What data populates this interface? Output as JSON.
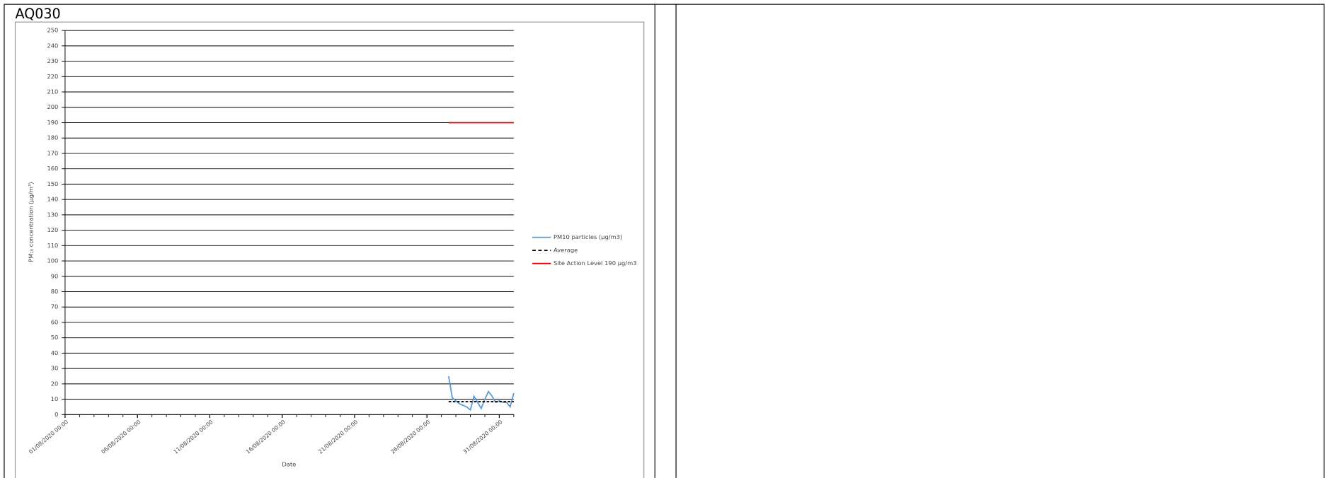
{
  "header": {
    "label": "AQ030"
  },
  "chart_data": {
    "type": "line",
    "y_label": "PM₁₀ concentration (µg/m³)",
    "x_label": "Date",
    "x": [
      "27/08/2020 12:00",
      "27/08/2020 18:00",
      "28/08/2020 00:00",
      "28/08/2020 06:00",
      "28/08/2020 12:00",
      "28/08/2020 18:00",
      "29/08/2020 00:00",
      "29/08/2020 06:00",
      "29/08/2020 12:00",
      "29/08/2020 18:00",
      "30/08/2020 00:00",
      "30/08/2020 06:00",
      "30/08/2020 12:00",
      "30/08/2020 18:00",
      "31/08/2020 00:00",
      "31/08/2020 06:00",
      "31/08/2020 12:00",
      "31/08/2020 18:00",
      "01/09/2020 00:00"
    ],
    "series": [
      {
        "name": "PM10 particles (µg/m3)",
        "color": "#5b9bd5",
        "dash": false,
        "values": [
          25,
          11,
          9,
          7,
          6,
          5,
          3,
          12,
          8,
          4,
          10,
          15,
          12,
          8,
          9,
          8,
          8,
          5,
          14
        ]
      },
      {
        "name": "Average",
        "color": "#000000",
        "dash": true,
        "values": [
          8.4,
          8.4,
          8.4,
          8.4,
          8.4,
          8.4,
          8.4,
          8.4,
          8.4,
          8.4,
          8.4,
          8.4,
          8.4,
          8.4,
          8.4,
          8.4,
          8.4,
          8.4,
          8.4
        ]
      },
      {
        "name": "Site Action Level 190 µg/m3",
        "color": "#e00000",
        "dash": false,
        "values": [
          190,
          190,
          190,
          190,
          190,
          190,
          190,
          190,
          190,
          190,
          190,
          190,
          190,
          190,
          190,
          190,
          190,
          190,
          190
        ]
      }
    ],
    "xlim": [
      "01/08/2020 00:00",
      "01/09/2020 00:00"
    ],
    "xticks": [
      "01/08/2020 00:00",
      "06/08/2020 00:00",
      "11/08/2020 00:00",
      "16/08/2020 00:00",
      "21/08/2020 00:00",
      "26/08/2020 00:00",
      "31/08/2020 00:00"
    ],
    "ylim": [
      0,
      250
    ],
    "yticks": [
      0,
      10,
      20,
      30,
      40,
      50,
      60,
      70,
      80,
      90,
      100,
      110,
      120,
      130,
      140,
      150,
      160,
      170,
      180,
      190,
      200,
      210,
      220,
      230,
      240,
      250
    ],
    "grid": true,
    "legend": "right"
  }
}
